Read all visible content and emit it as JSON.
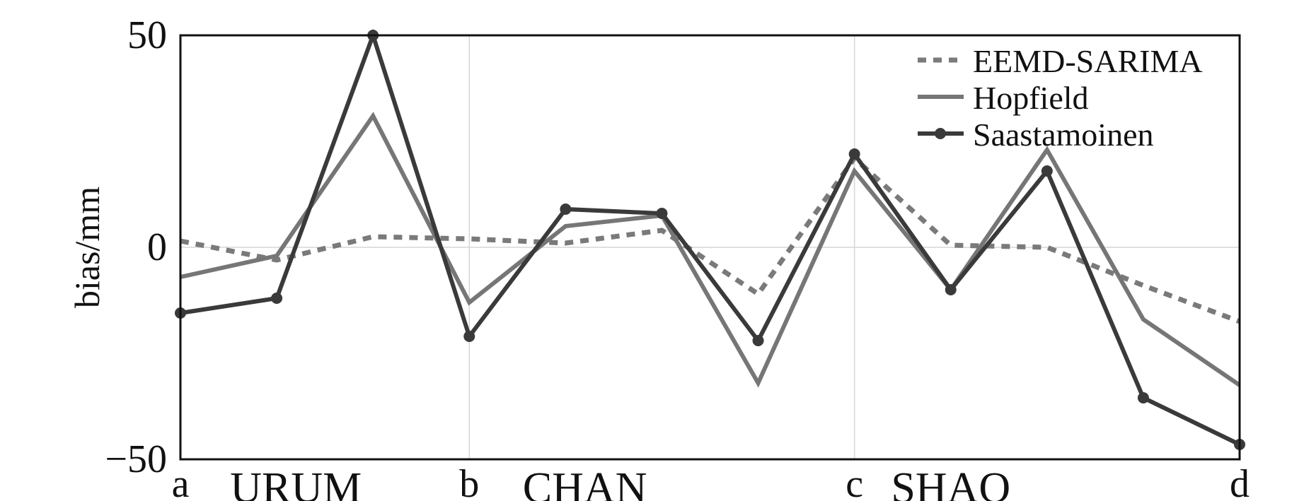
{
  "chart_data": {
    "type": "line",
    "xlabel": "",
    "ylabel": "bias/mm",
    "xlim": [
      0,
      11
    ],
    "ylim": [
      -50,
      50
    ],
    "y_ticks": [
      {
        "value": 50,
        "label": "50"
      },
      {
        "value": 0,
        "label": "0"
      },
      {
        "value": -50,
        "label": "−50"
      }
    ],
    "x_tick_labels": [
      {
        "x": 0,
        "label": "a"
      },
      {
        "x": 3,
        "label": "b"
      },
      {
        "x": 7,
        "label": "c"
      },
      {
        "x": 11,
        "label": "d"
      }
    ],
    "group_labels": [
      {
        "x": 1.2,
        "label": "URUM"
      },
      {
        "x": 4.2,
        "label": "CHAN"
      },
      {
        "x": 8.0,
        "label": "SHAO"
      }
    ],
    "grid_x": [
      3,
      7,
      11
    ],
    "grid_y": [
      0
    ],
    "x": [
      0,
      1,
      2,
      3,
      4,
      5,
      6,
      7,
      8,
      9,
      10,
      11
    ],
    "series": [
      {
        "name": "EEMD-SARIMA",
        "color": "#7a7a7a",
        "style": "dotted",
        "markers": false,
        "values": [
          1.5,
          -3,
          2.5,
          2,
          1,
          4,
          -11,
          21,
          0.5,
          0,
          -9,
          -17.5
        ]
      },
      {
        "name": "Hopfield",
        "color": "#767676",
        "style": "solid",
        "markers": false,
        "values": [
          -7,
          -2,
          31,
          -13,
          5,
          7.5,
          -32,
          18,
          -10,
          23,
          -17,
          -32.5
        ]
      },
      {
        "name": "Saastamoinen",
        "color": "#3a3a3a",
        "style": "solid",
        "markers": true,
        "values": [
          -15.5,
          -12,
          50,
          -21,
          9,
          8,
          -22,
          22,
          -10,
          18,
          -35.5,
          -46.5
        ]
      }
    ],
    "grid": true,
    "legend_position": "top-right"
  }
}
